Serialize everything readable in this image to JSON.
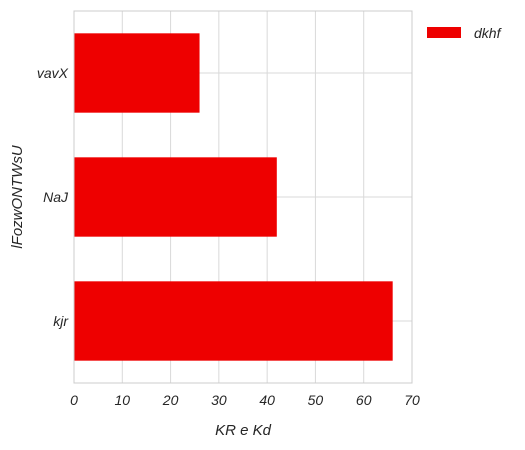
{
  "chart_data": {
    "type": "bar",
    "orientation": "horizontal",
    "categories": [
      "vavX",
      "NaJ",
      "kjr"
    ],
    "series": [
      {
        "name": "dkhf",
        "values": [
          26,
          42,
          66
        ],
        "color": "#ee0000"
      }
    ],
    "xlabel": "KR e Kd",
    "ylabel": "lFozwONTWsU",
    "xlim": [
      0,
      70
    ],
    "xticks": [
      0,
      10,
      20,
      30,
      40,
      50,
      60,
      70
    ],
    "grid": true,
    "legend_position": "outside-top-right"
  }
}
